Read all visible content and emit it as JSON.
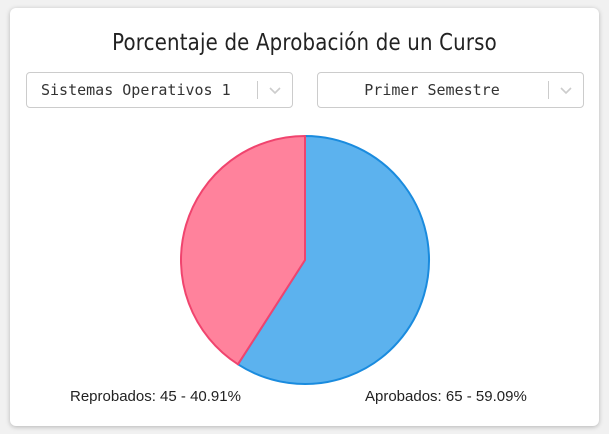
{
  "title": "Porcentaje de Aprobación de un Curso",
  "filters": {
    "course": "Sistemas Operativos 1",
    "semester": "Primer Semestre"
  },
  "icons": {
    "dropdown": "chevron-down-icon"
  },
  "chart_data": {
    "type": "pie",
    "title": "Porcentaje de Aprobación de un Curso",
    "slices": [
      {
        "name": "Reprobados",
        "value": 45,
        "percent": 40.91,
        "color": "#ff829c",
        "border": "#f0446e"
      },
      {
        "name": "Aprobados",
        "value": 65,
        "percent": 59.09,
        "color": "#5cb2ee",
        "border": "#1a8bde"
      }
    ],
    "labels": [
      "Reprobados: 45 - 40.91%",
      "Aprobados: 65 - 59.09%"
    ]
  }
}
